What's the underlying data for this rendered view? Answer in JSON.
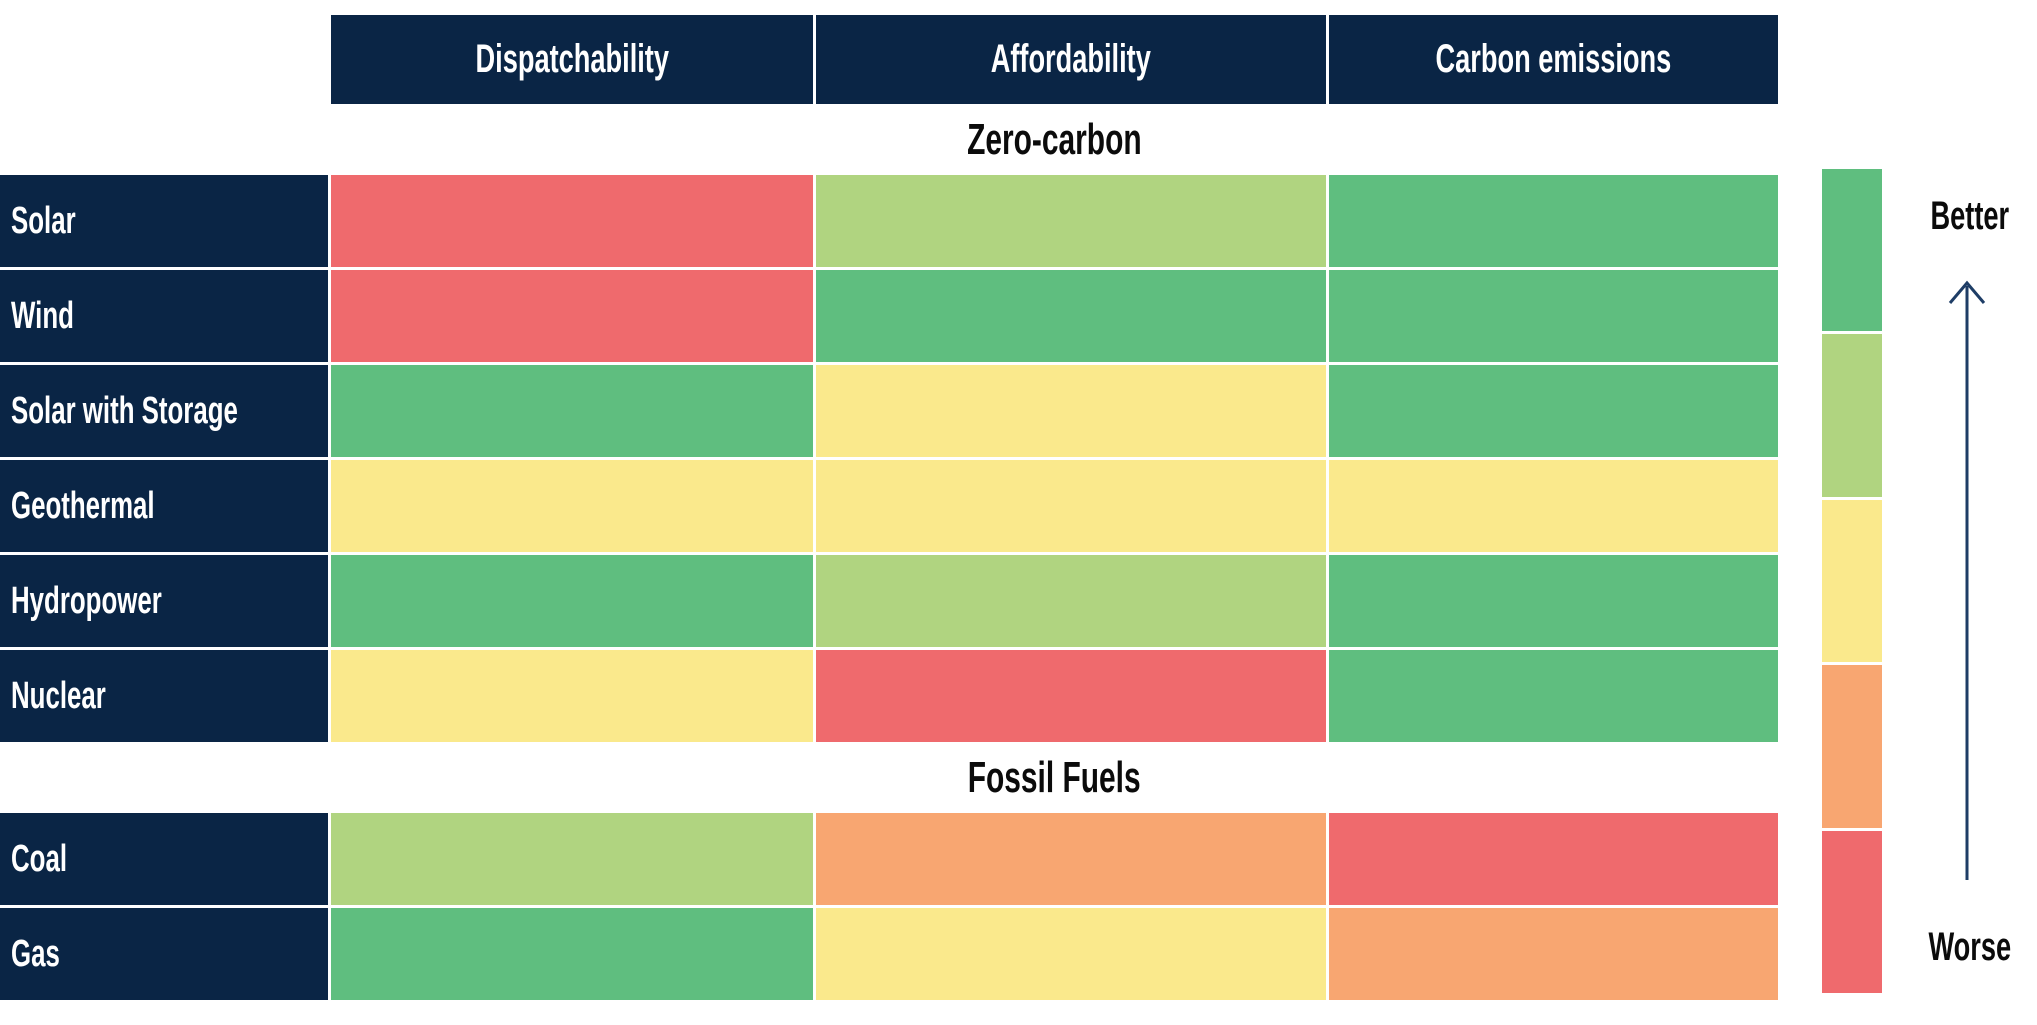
{
  "colors": {
    "navy": "#0A2545",
    "green": "#5FBE7F",
    "light-green": "#B0D480",
    "yellow": "#FAE98C",
    "orange": "#F8A671",
    "red": "#EF6A6D",
    "arrow": "#1E3D66",
    "title-text": "#0B0B0B",
    "header-text": "#FFFFFF"
  },
  "table": {
    "columns": [
      "Dispatchability",
      "Affordability",
      "Carbon emissions"
    ],
    "groups": [
      {
        "label": "Zero-carbon",
        "rows": [
          {
            "label": "Solar",
            "values": [
              "red",
              "light-green",
              "green"
            ]
          },
          {
            "label": "Wind",
            "values": [
              "red",
              "green",
              "green"
            ]
          },
          {
            "label": "Solar with Storage",
            "values": [
              "green",
              "yellow",
              "green"
            ]
          },
          {
            "label": "Geothermal",
            "values": [
              "yellow",
              "yellow",
              "yellow"
            ]
          },
          {
            "label": "Hydropower",
            "values": [
              "green",
              "light-green",
              "green"
            ]
          },
          {
            "label": "Nuclear",
            "values": [
              "yellow",
              "red",
              "green"
            ]
          }
        ]
      },
      {
        "label": "Fossil Fuels",
        "rows": [
          {
            "label": "Coal",
            "values": [
              "light-green",
              "orange",
              "red"
            ]
          },
          {
            "label": "Gas",
            "values": [
              "green",
              "yellow",
              "orange"
            ]
          }
        ]
      }
    ]
  },
  "legend": {
    "better_label": "Better",
    "worse_label": "Worse",
    "levels_top_to_bottom": [
      "green",
      "light-green",
      "yellow",
      "orange",
      "red"
    ]
  },
  "chart_data": {
    "type": "heatmap",
    "title": "",
    "columns": [
      "Dispatchability",
      "Affordability",
      "Carbon emissions"
    ],
    "scale_description": "5-level qualitative scale, green (5) = Better, light-green (4), yellow (3), orange (2), red (1) = Worse",
    "groups": [
      {
        "name": "Zero-carbon",
        "rows": [
          {
            "name": "Solar",
            "ratings": [
              1,
              4,
              5
            ],
            "colors": [
              "red",
              "light-green",
              "green"
            ]
          },
          {
            "name": "Wind",
            "ratings": [
              1,
              5,
              5
            ],
            "colors": [
              "red",
              "green",
              "green"
            ]
          },
          {
            "name": "Solar with Storage",
            "ratings": [
              5,
              3,
              5
            ],
            "colors": [
              "green",
              "yellow",
              "green"
            ]
          },
          {
            "name": "Geothermal",
            "ratings": [
              3,
              3,
              3
            ],
            "colors": [
              "yellow",
              "yellow",
              "yellow"
            ]
          },
          {
            "name": "Hydropower",
            "ratings": [
              5,
              4,
              5
            ],
            "colors": [
              "green",
              "light-green",
              "green"
            ]
          },
          {
            "name": "Nuclear",
            "ratings": [
              3,
              1,
              5
            ],
            "colors": [
              "yellow",
              "red",
              "green"
            ]
          }
        ]
      },
      {
        "name": "Fossil Fuels",
        "rows": [
          {
            "name": "Coal",
            "ratings": [
              4,
              2,
              1
            ],
            "colors": [
              "light-green",
              "orange",
              "red"
            ]
          },
          {
            "name": "Gas",
            "ratings": [
              5,
              3,
              2
            ],
            "colors": [
              "green",
              "yellow",
              "orange"
            ]
          }
        ]
      }
    ],
    "legend": {
      "top_label": "Better",
      "bottom_label": "Worse",
      "order_top_to_bottom": [
        "green",
        "light-green",
        "yellow",
        "orange",
        "red"
      ],
      "arrow_direction": "up"
    },
    "layout_hints": {
      "legend_position": "right",
      "row_group_titles_centered_over_data_columns": true,
      "grid": "white 3px separators between all cells"
    }
  }
}
